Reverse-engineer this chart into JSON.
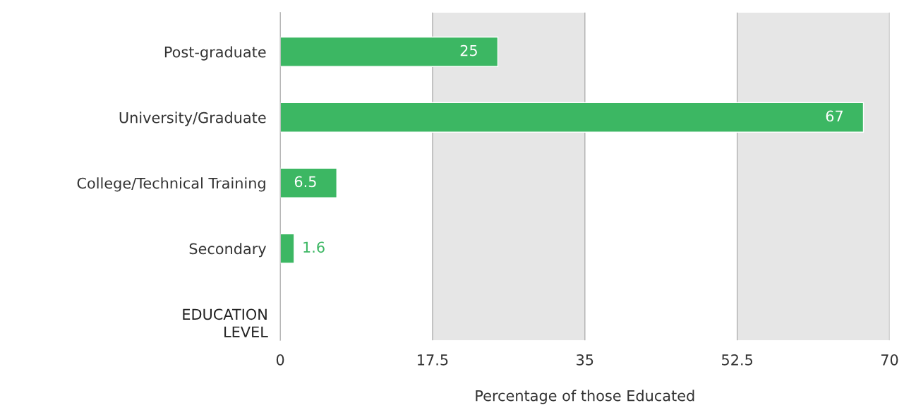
{
  "chart_data": {
    "type": "bar",
    "orientation": "horizontal",
    "categories": [
      "Post-graduate",
      "University/Graduate",
      "College/Technical Training",
      "Secondary"
    ],
    "values": [
      25,
      67,
      6.5,
      1.6
    ],
    "color": "#3cb763",
    "data_labels": true,
    "xlabel": "Percentage of those Educated",
    "ylabel": "EDUCATION\nLEVEL",
    "xlim": [
      0,
      70
    ],
    "xticks": [
      0,
      17.5,
      35,
      52.5,
      70
    ],
    "grid": "x",
    "bands": [
      {
        "axis": "x",
        "from": 17.5,
        "to": 35,
        "color": "#e6e6e6"
      },
      {
        "axis": "x",
        "from": 52.5,
        "to": 70,
        "color": "#e6e6e6"
      }
    ]
  }
}
